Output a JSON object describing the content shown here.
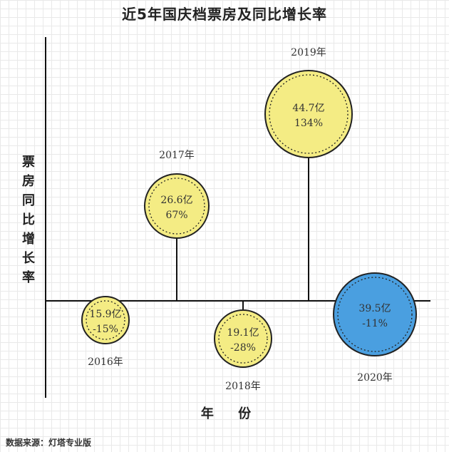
{
  "chart_data": {
    "type": "scatter",
    "title": "近5年国庆档票房及同比增长率",
    "xlabel": "年 份",
    "ylabel": "票房同比增长率",
    "points": [
      {
        "year": "2016年",
        "box_office": "15.9亿",
        "growth": "-15%",
        "growth_value": -15,
        "color": "#f4ec84"
      },
      {
        "year": "2017年",
        "box_office": "26.6亿",
        "growth": "67%",
        "growth_value": 67,
        "color": "#f4ec84"
      },
      {
        "year": "2018年",
        "box_office": "19.1亿",
        "growth": "-28%",
        "growth_value": -28,
        "color": "#f4ec84"
      },
      {
        "year": "2019年",
        "box_office": "44.7亿",
        "growth": "134%",
        "growth_value": 134,
        "color": "#f4ec84"
      },
      {
        "year": "2020年",
        "box_office": "39.5亿",
        "growth": "-11%",
        "growth_value": -11,
        "color": "#4a9fe0"
      }
    ],
    "grid": true
  },
  "source": "数据来源：灯塔专业版"
}
